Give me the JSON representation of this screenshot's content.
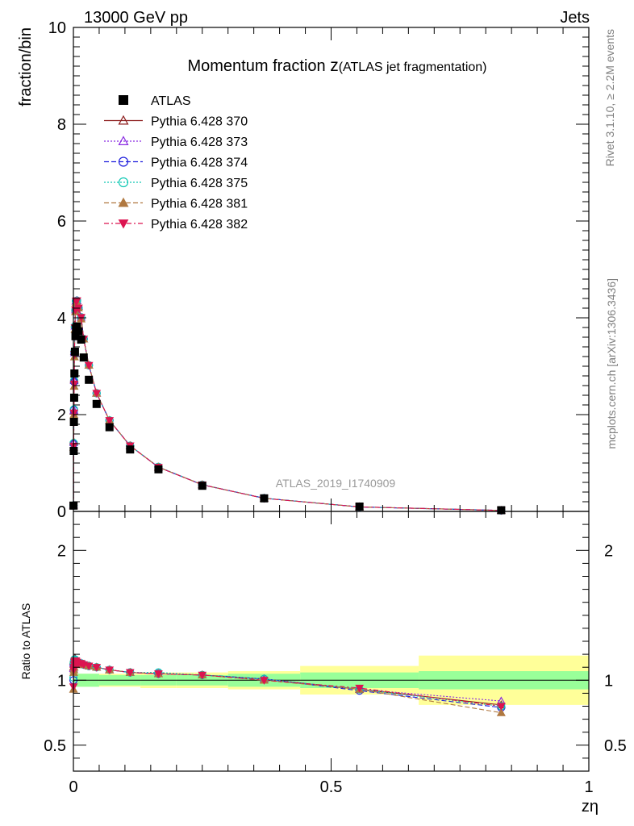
{
  "header": {
    "process": "13000 GeV pp",
    "category": "Jets",
    "side_rivet": "Rivet 3.1.10, ≥ 2.2M events",
    "side_site": "mcplots.cern.ch [arXiv:1306.3436]"
  },
  "chart_data": {
    "type": "scatter",
    "title": "Momentum fraction ",
    "title_symbol": "z",
    "title_sub": "(ATLAS jet fragmentation)",
    "analysis_label": "ATLAS_2019_I1740909",
    "xlabel": "zη",
    "ylabel_main": "fraction/bin",
    "ylabel_ratio": "Ratio to ATLAS",
    "xlim": [
      0,
      1
    ],
    "ylim_main": [
      0,
      10
    ],
    "ylim_ratio": [
      0.3,
      2.3
    ],
    "x_ticks": [
      {
        "v": 0,
        "label": "0"
      },
      {
        "v": 0.5,
        "label": "0.5"
      },
      {
        "v": 1,
        "label": "1"
      }
    ],
    "y_ticks_main": [
      {
        "v": 0,
        "label": "0"
      },
      {
        "v": 2,
        "label": "2"
      },
      {
        "v": 4,
        "label": "4"
      },
      {
        "v": 6,
        "label": "6"
      },
      {
        "v": 8,
        "label": "8"
      },
      {
        "v": 10,
        "label": "10"
      }
    ],
    "y_ticks_ratio": [
      {
        "v": 0.5,
        "label": "0.5"
      },
      {
        "v": 1,
        "label": "1"
      },
      {
        "v": 2,
        "label": "2"
      }
    ],
    "x": [
      0.0002,
      0.0006,
      0.001,
      0.0015,
      0.002,
      0.003,
      0.004,
      0.005,
      0.007,
      0.01,
      0.015,
      0.02,
      0.03,
      0.045,
      0.07,
      0.11,
      0.165,
      0.25,
      0.37,
      0.555,
      0.83
    ],
    "data": {
      "name": "ATLAS",
      "y": [
        0.12,
        1.25,
        1.85,
        2.35,
        2.85,
        3.3,
        3.62,
        3.78,
        3.82,
        3.72,
        3.55,
        3.18,
        2.72,
        2.22,
        1.74,
        1.28,
        0.87,
        0.53,
        0.27,
        0.1,
        0.025
      ]
    },
    "bands": [
      {
        "x0": 0.0,
        "x1": 0.05,
        "inner": 0.05,
        "outer": 0.05
      },
      {
        "x0": 0.05,
        "x1": 0.13,
        "inner": 0.04,
        "outer": 0.05
      },
      {
        "x0": 0.13,
        "x1": 0.2,
        "inner": 0.04,
        "outer": 0.06
      },
      {
        "x0": 0.2,
        "x1": 0.3,
        "inner": 0.04,
        "outer": 0.06
      },
      {
        "x0": 0.3,
        "x1": 0.44,
        "inner": 0.05,
        "outer": 0.07
      },
      {
        "x0": 0.44,
        "x1": 0.67,
        "inner": 0.06,
        "outer": 0.11
      },
      {
        "x0": 0.67,
        "x1": 1.0,
        "inner": 0.07,
        "outer": 0.19
      }
    ],
    "series": [
      {
        "name": "Pythia 6.428 370",
        "color": "#8b1a1a",
        "dash": "",
        "marker": "triangle-open",
        "ratio": [
          1.1,
          1.15,
          1.12,
          1.16,
          1.16,
          1.17,
          1.16,
          1.15,
          1.14,
          1.14,
          1.13,
          1.12,
          1.11,
          1.1,
          1.08,
          1.06,
          1.05,
          1.04,
          1.01,
          0.93,
          0.81
        ]
      },
      {
        "name": "Pythia 6.428 373",
        "color": "#8a2be2",
        "dash": "2,2",
        "marker": "triangle-open",
        "ratio": [
          1.09,
          1.14,
          1.13,
          1.15,
          1.15,
          1.16,
          1.15,
          1.15,
          1.14,
          1.14,
          1.13,
          1.12,
          1.11,
          1.1,
          1.08,
          1.06,
          1.05,
          1.04,
          1.01,
          0.93,
          0.84
        ]
      },
      {
        "name": "Pythia 6.428 374",
        "color": "#1e1edc",
        "dash": "6,3",
        "marker": "circle-open",
        "ratio": [
          1.0,
          1.12,
          1.13,
          1.14,
          1.15,
          1.16,
          1.15,
          1.15,
          1.14,
          1.13,
          1.13,
          1.12,
          1.11,
          1.1,
          1.08,
          1.06,
          1.05,
          1.04,
          1.01,
          0.92,
          0.79
        ]
      },
      {
        "name": "Pythia 6.428 375",
        "color": "#10c8b4",
        "dash": "2,2",
        "marker": "circle-open",
        "ratio": [
          1.02,
          1.13,
          1.14,
          1.15,
          1.16,
          1.16,
          1.15,
          1.15,
          1.14,
          1.13,
          1.13,
          1.12,
          1.11,
          1.1,
          1.08,
          1.06,
          1.06,
          1.04,
          1.01,
          0.93,
          0.8
        ]
      },
      {
        "name": "Pythia 6.428 381",
        "color": "#b07840",
        "dash": "6,3",
        "marker": "triangle-filled",
        "ratio": [
          0.93,
          1.06,
          1.08,
          1.1,
          1.12,
          1.14,
          1.14,
          1.14,
          1.13,
          1.13,
          1.12,
          1.12,
          1.11,
          1.1,
          1.08,
          1.06,
          1.05,
          1.04,
          1.0,
          0.93,
          0.75
        ]
      },
      {
        "name": "Pythia 6.428 382",
        "color": "#dc1450",
        "dash": "6,3,2,3",
        "marker": "triangle-down-filled",
        "ratio": [
          0.95,
          1.08,
          1.1,
          1.12,
          1.14,
          1.15,
          1.15,
          1.15,
          1.14,
          1.13,
          1.13,
          1.12,
          1.11,
          1.1,
          1.08,
          1.06,
          1.05,
          1.04,
          1.0,
          0.94,
          0.8
        ]
      }
    ],
    "colors": {
      "band_inner": "#99ff99",
      "band_outer": "#ffff99",
      "data_marker": "#000000",
      "analysis_label": "#999999",
      "side_text": "#808080"
    }
  }
}
